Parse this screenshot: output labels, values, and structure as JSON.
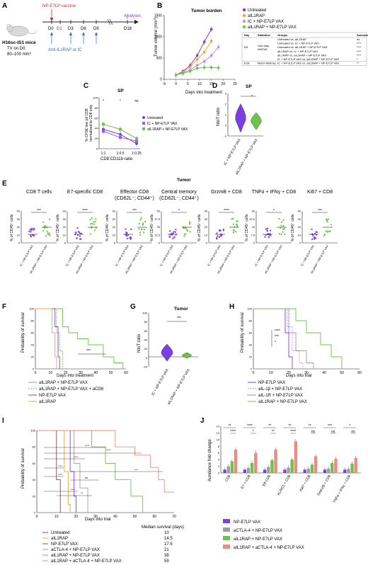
{
  "colors": {
    "purple": "#7b3fe4",
    "light_purple": "#b98ff0",
    "green": "#6cc24a",
    "salmon": "#f08a80",
    "red": "#d62728",
    "orange": "#f2a33a",
    "olive": "#a7a230",
    "grey": "#9e9e9e",
    "black": "#222222"
  },
  "panelA": {
    "label": "A",
    "vaccine": "NP-E7LP vaccine",
    "title": "H16sc-IS1 mice",
    "tv1": "TV on D0:",
    "tv2": "80–100 mm",
    "tv_sup": "3",
    "days": [
      "D0",
      "D1",
      "D3",
      "D6",
      "D9",
      "D18"
    ],
    "treat": "Anti-IL1RAP or IC",
    "analyses": "Analyses"
  },
  "panelB": {
    "label": "B",
    "title": "Tumor burden",
    "ylabel": "Tumor volume (mm",
    "ylabel_sup": "3",
    ")": ")",
    "xlabel": "Days into treatment",
    "legend": [
      "Untreated",
      "aIL1RAP",
      "IC + NP-E7LP VAX",
      "aIL1RAP + NP-E7LP VAX"
    ],
    "table": {
      "headers": [
        "Day",
        "Statistics",
        "Groups",
        "Summary"
      ],
      "day_col": [
        "D9",
        "",
        "",
        "",
        "",
        "D18"
      ],
      "stat_col": [
        "One-way ANOVA",
        "",
        "",
        "",
        "",
        "Mann-Whitney"
      ],
      "groups": [
        "Untreated vs. aIL1RAP",
        "Untreated vs. IC + NP-E7LP VAX",
        "Untreated vs. aIL1RAP + NP-E7LP VAX",
        "aIL1RAP vs. IC + NP-E7LP VAX",
        "aIL1RAP vs. aIL1RAP + NP-E7LP VAX",
        "IC + NP-E7LP VAX vs. aIL1RAP + NP-E7LP VAX",
        "IC + NP-E7LP VAX vs. aIL1RAP + NP-E7LP VAX"
      ],
      "summary": [
        "ns",
        "****",
        "****",
        "****",
        "****",
        "*",
        "**"
      ]
    }
  },
  "panelC": {
    "label": "C",
    "title": "SP",
    "ylabel1": "% CFSE low (of CD8",
    "ylabel2": "normalized to CD8 only",
    "xlabel": "CD8:CD11b ratio",
    "xticks": [
      "1:1",
      "1:0.5",
      "1:0.25"
    ],
    "sig": [
      "*",
      "*",
      "ns"
    ],
    "legend": [
      "Untreated",
      "IC + NP-E7LP VAX",
      "aIL1RAP + NP-E7LP VAX"
    ]
  },
  "panelD": {
    "label": "D",
    "title": "SP",
    "ylabel": "NtoT ratio",
    "sig": "*",
    "xticks": [
      "IC + NP-E7LP VAX",
      "aIL1RAP + NP-E7LP VAX"
    ]
  },
  "panelE": {
    "label": "E",
    "title": "Tumor",
    "ylabel": "% of CD45",
    "plots": [
      {
        "title": "CD8 T cells",
        "sig": "***"
      },
      {
        "title": "E7-specific CD8",
        "sig": "****"
      },
      {
        "title": "Effector CD8",
        "title2": "(CD62L",
        "title3": "; CD44",
        "sig": "***"
      },
      {
        "title": "Central memory",
        "title2": "(CD62L",
        "title3": "; CD44",
        "sig": "*"
      },
      {
        "title": "GrzmB + CD8",
        "sig": "****"
      },
      {
        "title": "TNFα + IFNγ + CD8",
        "sig": "*"
      },
      {
        "title": "Ki67 + CD8",
        "sig": "***"
      }
    ],
    "xticks": [
      "IC + NP-E7LP VAX",
      "aIL1RAP + NP-E7LP VAX"
    ]
  },
  "panelF": {
    "label": "F",
    "ylabel": "Probability of survival",
    "xlabel": "Days into treatment",
    "sig": "***",
    "legend": [
      "aIL1RAP + NP-E7LP VAX",
      "aIL1RAP + NP-E7LP VAX + aCD8",
      "NP-E7LP VAX",
      "aIL1RAP"
    ]
  },
  "panelG": {
    "label": "G",
    "title": "Tumor",
    "ylabel": "NtoT ratio",
    "sig": "***",
    "xticks": [
      "IC + NP-E7LP VAX",
      "aIL1RAP + NP-E7LP VAX"
    ]
  },
  "panelH": {
    "label": "H",
    "ylabel": "Probability of survival",
    "xlabel": "Days into trial",
    "sig": [
      "****",
      "***",
      "*"
    ],
    "legend": [
      "NP-E7LP VAX",
      "aIL-1β + NP-E7LP VAX",
      "aIL-1R + NP-E7LP VAX",
      "aIL1RAP + NP-E7LP VAX"
    ]
  },
  "panelI": {
    "label": "I",
    "ylabel": "Probability of survival",
    "xlabel": "Days into trial",
    "sig": [
      "****",
      "****",
      "****",
      "****",
      "***",
      "****",
      "ns",
      "***",
      "**"
    ],
    "table_header": "Median survival (days)",
    "rows": [
      {
        "name": "Untreated",
        "val": "10"
      },
      {
        "name": "aIL1RAP",
        "val": "14.5"
      },
      {
        "name": "NP-E7LP VAX",
        "val": "17.5"
      },
      {
        "name": "aCTLA-4 + NP-E7LP VAX",
        "val": "21"
      },
      {
        "name": "aIL1RAP + NP-E7LP VAX",
        "val": "38"
      },
      {
        "name": "aIL1RAP + aCTLA-4 + NP-E7LP VAX",
        "val": "59"
      }
    ]
  },
  "panelJ": {
    "label": "J",
    "ylabel": "Aundance fold change",
    "categories": [
      "CD8",
      "E7 + CD8",
      "Eff CD8",
      "KLRG1 + CD8",
      "Ki67 + CD8",
      "GranzB + CD8",
      "TNFα + IFNγ + CD8"
    ],
    "sig_top": [
      "**",
      "****",
      "**",
      "**",
      "**",
      "***",
      "*"
    ],
    "sig_mid": [
      "****",
      "*",
      "**",
      "****",
      "ns",
      "ns",
      "ns"
    ],
    "legend": [
      "NP-E7LP VAX",
      "aCTLA-4 + NP-E7LP VAX",
      "aIL1RAP + NP-E7LP VAX",
      "aIL1RAP + aCTLA-4 + NP-E7LP VAX"
    ]
  },
  "chart_data": [
    {
      "type": "line",
      "panel": "B",
      "xlabel": "Days into treatment",
      "ylabel": "Tumor volume (mm3)",
      "xlim": [
        -5,
        25
      ],
      "ylim": [
        0,
        1500
      ],
      "x": [
        0,
        3,
        6,
        9,
        12,
        15,
        18
      ],
      "series": [
        {
          "name": "Untreated",
          "values": [
            100,
            190,
            330,
            560,
            880,
            1180,
            null
          ]
        },
        {
          "name": "aIL1RAP",
          "values": [
            100,
            170,
            290,
            470,
            640,
            900,
            null
          ]
        },
        {
          "name": "IC + NP-E7LP VAX",
          "values": [
            100,
            160,
            220,
            330,
            420,
            560,
            760
          ]
        },
        {
          "name": "aIL1RAP + NP-E7LP VAX",
          "values": [
            100,
            140,
            190,
            260,
            280,
            280,
            270
          ]
        }
      ]
    },
    {
      "type": "line",
      "panel": "C",
      "xlabel": "CD8:CD11b ratio",
      "ylabel": "% CFSE low (of CD8+) normalized to CD8 only",
      "ylim": [
        0,
        100
      ],
      "categories": [
        "1:1",
        "1:0.5",
        "1:0.25"
      ],
      "series": [
        {
          "name": "Untreated",
          "values": [
            38,
            28,
            10
          ]
        },
        {
          "name": "IC + NP-E7LP VAX",
          "values": [
            34,
            22,
            15
          ]
        },
        {
          "name": "aIL1RAP + NP-E7LP VAX",
          "values": [
            48,
            38,
            20
          ]
        }
      ]
    },
    {
      "type": "bar",
      "panel": "J",
      "ylabel": "Aundance fold change",
      "ylim": [
        0,
        14
      ],
      "categories": [
        "CD8",
        "E7 + CD8",
        "Eff CD8",
        "KLRG1 + CD8",
        "Ki67 + CD8",
        "GranzB + CD8",
        "TNFα + IFNγ + CD8"
      ],
      "series": [
        {
          "name": "NP-E7LP VAX",
          "values": [
            1,
            1,
            1,
            1,
            1,
            1,
            1
          ]
        },
        {
          "name": "aCTLA-4 + NP-E7LP VAX",
          "values": [
            2,
            1.5,
            1.8,
            1.6,
            1.3,
            1.3,
            1.2
          ]
        },
        {
          "name": "aIL1RAP + NP-E7LP VAX",
          "values": [
            3.5,
            3,
            3.8,
            4,
            2.5,
            3,
            2.8
          ]
        },
        {
          "name": "aIL1RAP + aCTLA-4 + NP-E7LP VAX",
          "values": [
            7,
            6,
            7,
            9.5,
            5,
            4.2,
            4.5
          ]
        }
      ]
    }
  ]
}
